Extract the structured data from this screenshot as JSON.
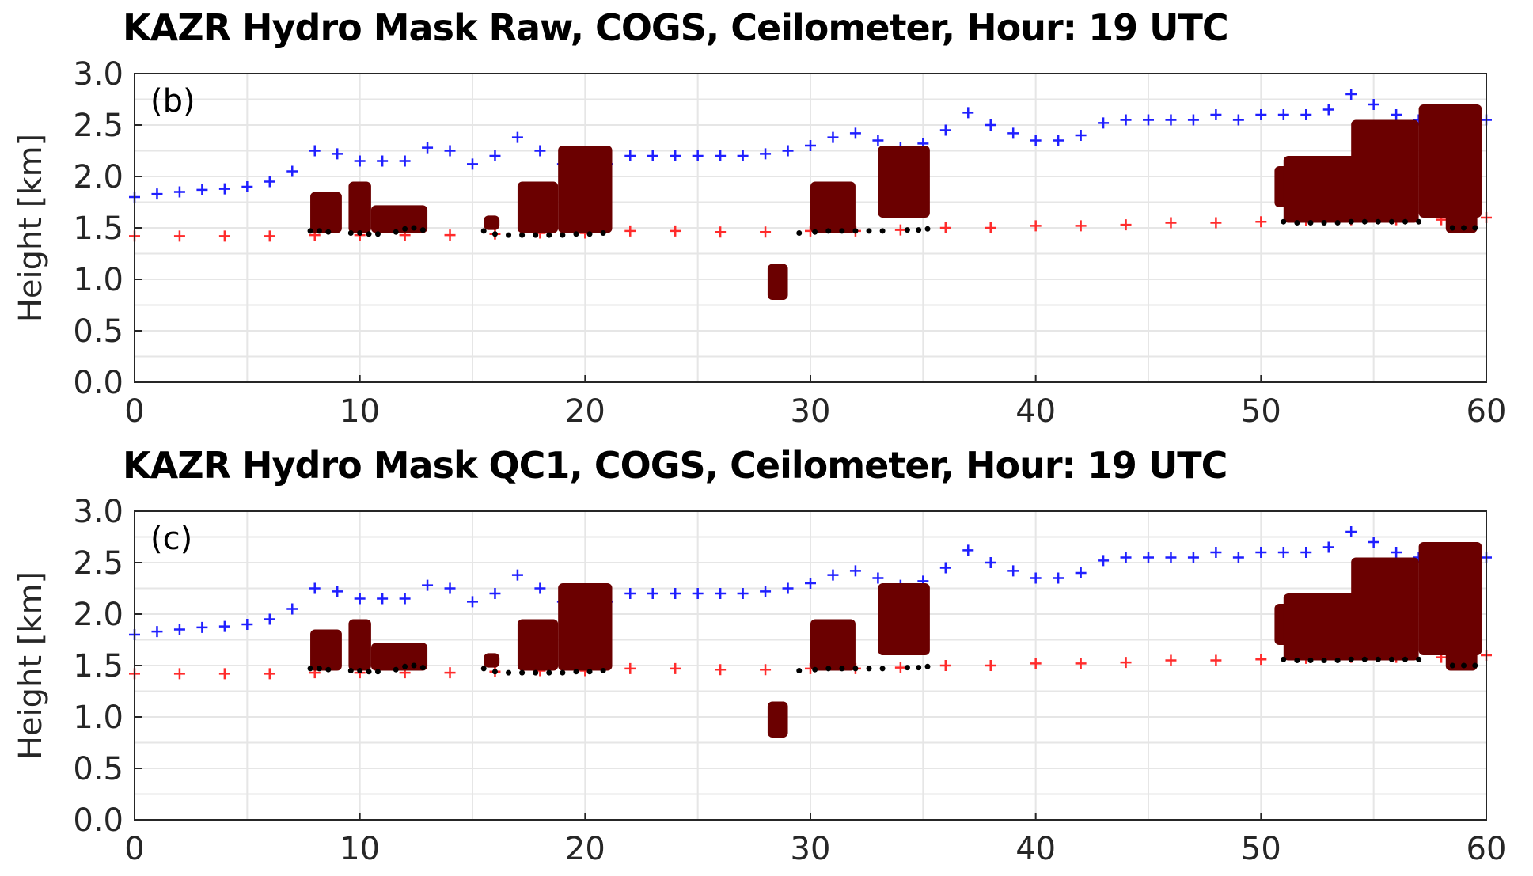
{
  "chart_data": [
    {
      "id": "panel-b",
      "type": "scatter",
      "title": "KAZR Hydro Mask Raw, COGS, Ceilometer, Hour: 19 UTC",
      "panel_label": "(b)",
      "ylabel": "Height [km]",
      "xlabel": "",
      "xlim": [
        0,
        60
      ],
      "ylim": [
        0,
        3
      ],
      "x_ticks": [
        0,
        10,
        20,
        30,
        40,
        50,
        60
      ],
      "x_tick_labels": [
        "0",
        "10",
        "20",
        "30",
        "40",
        "50",
        "60"
      ],
      "y_ticks": [
        0,
        0.5,
        1,
        1.5,
        2,
        2.5,
        3
      ],
      "y_tick_labels": [
        "0.0",
        "0.5",
        "1.0",
        "1.5",
        "2.0",
        "2.5",
        "3.0"
      ],
      "grid": true,
      "colors": {
        "cogs_top": "#1f1fff",
        "ceilometer": "#ff2b2b",
        "hydro_mask": "#6b0000",
        "cloud_base": "#000000"
      },
      "series": [
        {
          "role": "cogs_top",
          "marker": "+",
          "x": [
            0,
            1,
            2,
            3,
            4,
            5,
            6,
            7,
            8,
            9,
            10,
            11,
            12,
            13,
            14,
            15,
            16,
            17,
            18,
            19,
            20,
            21,
            22,
            23,
            24,
            25,
            26,
            27,
            28,
            29,
            30,
            31,
            32,
            33,
            34,
            35,
            36,
            37,
            38,
            39,
            40,
            41,
            42,
            43,
            44,
            45,
            46,
            47,
            48,
            49,
            50,
            51,
            52,
            53,
            54,
            55,
            56,
            57,
            58,
            59,
            60
          ],
          "y": [
            1.8,
            1.83,
            1.85,
            1.87,
            1.88,
            1.9,
            1.95,
            2.05,
            2.25,
            2.22,
            2.15,
            2.15,
            2.15,
            2.28,
            2.25,
            2.12,
            2.2,
            2.38,
            2.25,
            2.12,
            2.12,
            2.12,
            2.2,
            2.2,
            2.2,
            2.2,
            2.2,
            2.2,
            2.22,
            2.25,
            2.3,
            2.38,
            2.42,
            2.35,
            2.28,
            2.32,
            2.45,
            2.62,
            2.5,
            2.42,
            2.35,
            2.35,
            2.4,
            2.52,
            2.55,
            2.55,
            2.55,
            2.55,
            2.6,
            2.55,
            2.6,
            2.6,
            2.6,
            2.65,
            2.8,
            2.7,
            2.6,
            2.55,
            2.55,
            2.55,
            2.55
          ]
        },
        {
          "role": "ceilometer",
          "marker": "+",
          "x": [
            0,
            2,
            4,
            6,
            8,
            10,
            12,
            14,
            16,
            18,
            20,
            22,
            24,
            26,
            28,
            30,
            32,
            34,
            36,
            38,
            40,
            42,
            44,
            46,
            48,
            50,
            52,
            54,
            56,
            58,
            60
          ],
          "y": [
            1.42,
            1.42,
            1.42,
            1.42,
            1.43,
            1.43,
            1.43,
            1.43,
            1.44,
            1.45,
            1.45,
            1.47,
            1.47,
            1.46,
            1.46,
            1.47,
            1.47,
            1.48,
            1.5,
            1.5,
            1.52,
            1.52,
            1.53,
            1.55,
            1.55,
            1.56,
            1.57,
            1.58,
            1.58,
            1.58,
            1.6
          ]
        },
        {
          "role": "hydro_mask",
          "blobs": [
            {
              "x0": 7.8,
              "x1": 9.2,
              "y0": 1.45,
              "y1": 1.85
            },
            {
              "x0": 9.5,
              "x1": 10.5,
              "y0": 1.45,
              "y1": 1.95
            },
            {
              "x0": 10.5,
              "x1": 13.0,
              "y0": 1.45,
              "y1": 1.72
            },
            {
              "x0": 15.5,
              "x1": 16.2,
              "y0": 1.48,
              "y1": 1.62
            },
            {
              "x0": 17.0,
              "x1": 18.8,
              "y0": 1.45,
              "y1": 1.95
            },
            {
              "x0": 18.8,
              "x1": 21.2,
              "y0": 1.45,
              "y1": 2.3
            },
            {
              "x0": 30.0,
              "x1": 32.0,
              "y0": 1.45,
              "y1": 1.95
            },
            {
              "x0": 33.0,
              "x1": 35.3,
              "y0": 1.6,
              "y1": 2.3
            },
            {
              "x0": 28.1,
              "x1": 29.0,
              "y0": 0.8,
              "y1": 1.15
            },
            {
              "x0": 50.6,
              "x1": 51.5,
              "y0": 1.7,
              "y1": 2.1
            },
            {
              "x0": 51.0,
              "x1": 55.8,
              "y0": 1.55,
              "y1": 2.2
            },
            {
              "x0": 54.0,
              "x1": 57.0,
              "y0": 1.55,
              "y1": 2.55
            },
            {
              "x0": 57.0,
              "x1": 59.8,
              "y0": 1.6,
              "y1": 2.7
            },
            {
              "x0": 58.2,
              "x1": 59.6,
              "y0": 1.45,
              "y1": 1.7
            }
          ]
        },
        {
          "role": "cloud_base",
          "marker": "dot",
          "x": [
            7.8,
            8.2,
            8.6,
            9.6,
            10.0,
            10.4,
            10.8,
            11.6,
            12.0,
            12.4,
            12.8,
            15.5,
            16.0,
            16.6,
            17.2,
            17.8,
            18.4,
            19.0,
            19.6,
            20.2,
            20.8,
            29.5,
            30.2,
            30.8,
            31.4,
            32.0,
            32.6,
            33.2,
            34.3,
            34.8,
            35.2,
            51.0,
            51.6,
            52.2,
            52.8,
            53.4,
            54.0,
            54.6,
            55.2,
            55.8,
            56.4,
            57.0,
            58.5,
            59.0,
            59.5
          ],
          "y": [
            1.47,
            1.47,
            1.46,
            1.45,
            1.45,
            1.44,
            1.44,
            1.46,
            1.49,
            1.5,
            1.48,
            1.47,
            1.44,
            1.43,
            1.43,
            1.43,
            1.43,
            1.43,
            1.44,
            1.44,
            1.45,
            1.45,
            1.46,
            1.47,
            1.47,
            1.47,
            1.47,
            1.47,
            1.48,
            1.48,
            1.49,
            1.56,
            1.55,
            1.55,
            1.55,
            1.55,
            1.56,
            1.56,
            1.56,
            1.56,
            1.56,
            1.56,
            1.5,
            1.5,
            1.5
          ]
        }
      ]
    },
    {
      "id": "panel-c",
      "type": "scatter",
      "title": "KAZR Hydro Mask QC1, COGS, Ceilometer, Hour: 19 UTC",
      "panel_label": "(c)",
      "ylabel": "Height [km]",
      "xlabel": "",
      "xlim": [
        0,
        60
      ],
      "ylim": [
        0,
        3
      ],
      "x_ticks": [
        0,
        10,
        20,
        30,
        40,
        50,
        60
      ],
      "x_tick_labels": [
        "0",
        "10",
        "20",
        "30",
        "40",
        "50",
        "60"
      ],
      "y_ticks": [
        0,
        0.5,
        1,
        1.5,
        2,
        2.5,
        3
      ],
      "y_tick_labels": [
        "0.0",
        "0.5",
        "1.0",
        "1.5",
        "2.0",
        "2.5",
        "3.0"
      ],
      "grid": true,
      "colors": {
        "cogs_top": "#1f1fff",
        "ceilometer": "#ff2b2b",
        "hydro_mask": "#6b0000",
        "cloud_base": "#000000"
      },
      "series": [
        {
          "role": "cogs_top",
          "marker": "+",
          "x": [
            0,
            1,
            2,
            3,
            4,
            5,
            6,
            7,
            8,
            9,
            10,
            11,
            12,
            13,
            14,
            15,
            16,
            17,
            18,
            19,
            20,
            21,
            22,
            23,
            24,
            25,
            26,
            27,
            28,
            29,
            30,
            31,
            32,
            33,
            34,
            35,
            36,
            37,
            38,
            39,
            40,
            41,
            42,
            43,
            44,
            45,
            46,
            47,
            48,
            49,
            50,
            51,
            52,
            53,
            54,
            55,
            56,
            57,
            58,
            59,
            60
          ],
          "y": [
            1.8,
            1.83,
            1.85,
            1.87,
            1.88,
            1.9,
            1.95,
            2.05,
            2.25,
            2.22,
            2.15,
            2.15,
            2.15,
            2.28,
            2.25,
            2.12,
            2.2,
            2.38,
            2.25,
            2.12,
            2.12,
            2.12,
            2.2,
            2.2,
            2.2,
            2.2,
            2.2,
            2.2,
            2.22,
            2.25,
            2.3,
            2.38,
            2.42,
            2.35,
            2.28,
            2.32,
            2.45,
            2.62,
            2.5,
            2.42,
            2.35,
            2.35,
            2.4,
            2.52,
            2.55,
            2.55,
            2.55,
            2.55,
            2.6,
            2.55,
            2.6,
            2.6,
            2.6,
            2.65,
            2.8,
            2.7,
            2.6,
            2.55,
            2.55,
            2.55,
            2.55
          ]
        },
        {
          "role": "ceilometer",
          "marker": "+",
          "x": [
            0,
            2,
            4,
            6,
            8,
            10,
            12,
            14,
            16,
            18,
            20,
            22,
            24,
            26,
            28,
            30,
            32,
            34,
            36,
            38,
            40,
            42,
            44,
            46,
            48,
            50,
            52,
            54,
            56,
            58,
            60
          ],
          "y": [
            1.42,
            1.42,
            1.42,
            1.42,
            1.43,
            1.43,
            1.43,
            1.43,
            1.44,
            1.45,
            1.45,
            1.47,
            1.47,
            1.46,
            1.46,
            1.47,
            1.47,
            1.48,
            1.5,
            1.5,
            1.52,
            1.52,
            1.53,
            1.55,
            1.55,
            1.56,
            1.57,
            1.58,
            1.58,
            1.58,
            1.6
          ]
        },
        {
          "role": "hydro_mask",
          "blobs": [
            {
              "x0": 7.8,
              "x1": 9.2,
              "y0": 1.45,
              "y1": 1.85
            },
            {
              "x0": 9.5,
              "x1": 10.5,
              "y0": 1.45,
              "y1": 1.95
            },
            {
              "x0": 10.5,
              "x1": 13.0,
              "y0": 1.45,
              "y1": 1.72
            },
            {
              "x0": 15.5,
              "x1": 16.2,
              "y0": 1.48,
              "y1": 1.62
            },
            {
              "x0": 17.0,
              "x1": 18.8,
              "y0": 1.45,
              "y1": 1.95
            },
            {
              "x0": 18.8,
              "x1": 21.2,
              "y0": 1.45,
              "y1": 2.3
            },
            {
              "x0": 30.0,
              "x1": 32.0,
              "y0": 1.45,
              "y1": 1.95
            },
            {
              "x0": 33.0,
              "x1": 35.3,
              "y0": 1.6,
              "y1": 2.3
            },
            {
              "x0": 28.1,
              "x1": 29.0,
              "y0": 0.8,
              "y1": 1.15
            },
            {
              "x0": 50.6,
              "x1": 51.5,
              "y0": 1.7,
              "y1": 2.1
            },
            {
              "x0": 51.0,
              "x1": 55.8,
              "y0": 1.55,
              "y1": 2.2
            },
            {
              "x0": 54.0,
              "x1": 57.0,
              "y0": 1.55,
              "y1": 2.55
            },
            {
              "x0": 57.0,
              "x1": 59.8,
              "y0": 1.6,
              "y1": 2.7
            },
            {
              "x0": 58.2,
              "x1": 59.6,
              "y0": 1.45,
              "y1": 1.7
            }
          ]
        },
        {
          "role": "cloud_base",
          "marker": "dot",
          "x": [
            7.8,
            8.2,
            8.6,
            9.6,
            10.0,
            10.4,
            10.8,
            11.6,
            12.0,
            12.4,
            12.8,
            15.5,
            16.0,
            16.6,
            17.2,
            17.8,
            18.4,
            19.0,
            19.6,
            20.2,
            20.8,
            29.5,
            30.2,
            30.8,
            31.4,
            32.0,
            32.6,
            33.2,
            34.3,
            34.8,
            35.2,
            51.0,
            51.6,
            52.2,
            52.8,
            53.4,
            54.0,
            54.6,
            55.2,
            55.8,
            56.4,
            57.0,
            58.5,
            59.0,
            59.5
          ],
          "y": [
            1.47,
            1.47,
            1.46,
            1.45,
            1.45,
            1.44,
            1.44,
            1.46,
            1.49,
            1.5,
            1.48,
            1.47,
            1.44,
            1.43,
            1.43,
            1.43,
            1.43,
            1.43,
            1.44,
            1.44,
            1.45,
            1.45,
            1.46,
            1.47,
            1.47,
            1.47,
            1.47,
            1.47,
            1.48,
            1.48,
            1.49,
            1.56,
            1.55,
            1.55,
            1.55,
            1.55,
            1.56,
            1.56,
            1.56,
            1.56,
            1.56,
            1.56,
            1.5,
            1.5,
            1.5
          ]
        }
      ]
    }
  ]
}
